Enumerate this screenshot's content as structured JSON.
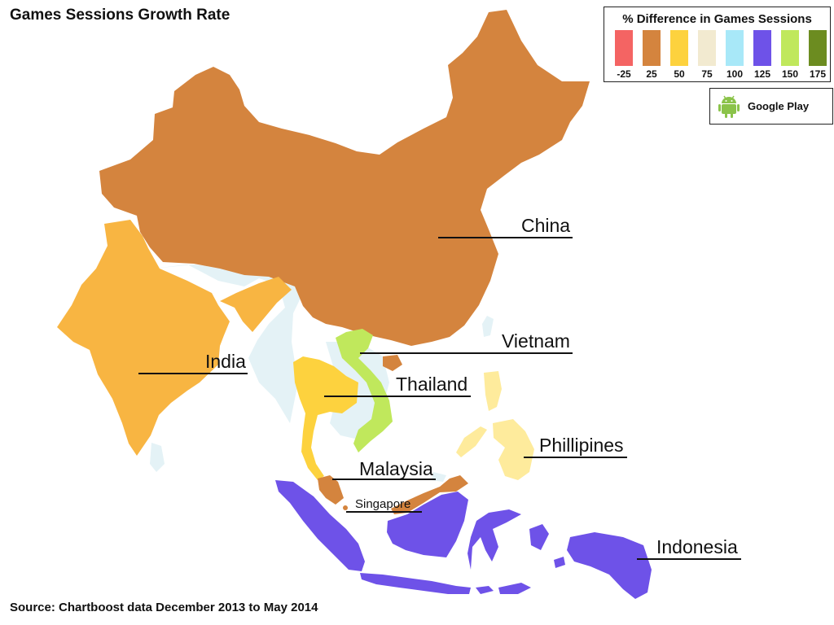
{
  "title": "Games Sessions Growth Rate",
  "source": "Source: Chartboost data December 2013 to May 2014",
  "legend": {
    "title": "% Difference in Games Sessions",
    "items": [
      {
        "label": "-25",
        "color": "#f46463"
      },
      {
        "label": "25",
        "color": "#d4843e"
      },
      {
        "label": "50",
        "color": "#fdd23e"
      },
      {
        "label": "75",
        "color": "#f2ead0"
      },
      {
        "label": "100",
        "color": "#a8e8f8"
      },
      {
        "label": "125",
        "color": "#6e52e8"
      },
      {
        "label": "150",
        "color": "#c0e85c"
      },
      {
        "label": "175",
        "color": "#6c8c20"
      }
    ]
  },
  "platform": {
    "label": "Google Play",
    "icon": "android-icon"
  },
  "countries": [
    {
      "name": "China",
      "value": 25,
      "color": "#d4843e"
    },
    {
      "name": "India",
      "value": 50,
      "color": "#f8b542"
    },
    {
      "name": "Vietnam",
      "value": 150,
      "color": "#c0e85c"
    },
    {
      "name": "Thailand",
      "value": 50,
      "color": "#fdd23e"
    },
    {
      "name": "Phillipines",
      "value": 75,
      "color": "#feeb9c"
    },
    {
      "name": "Malaysia",
      "value": 25,
      "color": "#d4843e"
    },
    {
      "name": "Singapore",
      "value": 25,
      "color": "#d4843e"
    },
    {
      "name": "Indonesia",
      "value": 125,
      "color": "#6e52e8"
    }
  ],
  "no_data_color": "#e4f2f6"
}
